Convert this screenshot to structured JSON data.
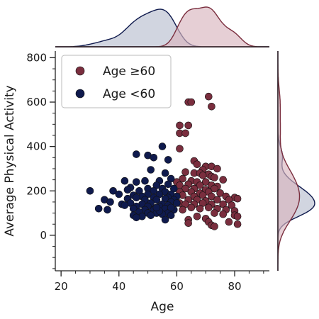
{
  "chart_data": {
    "type": "scatter",
    "title": "",
    "xlabel": "Age",
    "ylabel": "Average Physical Activity",
    "xlim": [
      18,
      92
    ],
    "ylim": [
      -160,
      830
    ],
    "xticks": [
      20,
      40,
      60,
      80
    ],
    "yticks": [
      0,
      200,
      400,
      600,
      800
    ],
    "x_minor_step": 5,
    "y_minor_step": 50,
    "grid": false,
    "legend_position": "top-left",
    "marginals": "kde (x on top, y on right)",
    "series": [
      {
        "name": "Age ≥60",
        "color": "#7a2e3e",
        "marginal_fill": "#d9b5be",
        "points": [
          [
            64,
            600
          ],
          [
            65,
            600
          ],
          [
            71,
            625
          ],
          [
            72,
            580
          ],
          [
            61,
            495
          ],
          [
            64,
            495
          ],
          [
            61,
            460
          ],
          [
            63,
            460
          ],
          [
            61,
            390
          ],
          [
            66,
            335
          ],
          [
            67,
            320
          ],
          [
            70,
            310
          ],
          [
            72,
            310
          ],
          [
            74,
            300
          ],
          [
            69,
            295
          ],
          [
            63,
            285
          ],
          [
            66,
            280
          ],
          [
            68,
            280
          ],
          [
            71,
            275
          ],
          [
            69,
            270
          ],
          [
            72,
            265
          ],
          [
            73,
            260
          ],
          [
            62,
            255
          ],
          [
            60,
            240
          ],
          [
            65,
            245
          ],
          [
            67,
            240
          ],
          [
            70,
            240
          ],
          [
            76,
            250
          ],
          [
            61,
            225
          ],
          [
            64,
            230
          ],
          [
            68,
            225
          ],
          [
            72,
            225
          ],
          [
            74,
            220
          ],
          [
            63,
            210
          ],
          [
            66,
            210
          ],
          [
            70,
            205
          ],
          [
            73,
            210
          ],
          [
            61,
            195
          ],
          [
            65,
            195
          ],
          [
            68,
            190
          ],
          [
            71,
            195
          ],
          [
            75,
            190
          ],
          [
            62,
            180
          ],
          [
            66,
            175
          ],
          [
            69,
            180
          ],
          [
            72,
            175
          ],
          [
            77,
            175
          ],
          [
            80,
            170
          ],
          [
            81,
            165
          ],
          [
            64,
            160
          ],
          [
            67,
            160
          ],
          [
            70,
            155
          ],
          [
            74,
            160
          ],
          [
            78,
            160
          ],
          [
            61,
            145
          ],
          [
            63,
            140
          ],
          [
            66,
            140
          ],
          [
            69,
            145
          ],
          [
            72,
            140
          ],
          [
            76,
            140
          ],
          [
            79,
            135
          ],
          [
            65,
            125
          ],
          [
            68,
            120
          ],
          [
            71,
            125
          ],
          [
            74,
            120
          ],
          [
            77,
            115
          ],
          [
            80,
            110
          ],
          [
            62,
            115
          ],
          [
            73,
            100
          ],
          [
            76,
            95
          ],
          [
            80,
            90
          ],
          [
            67,
            85
          ],
          [
            81,
            85
          ],
          [
            70,
            75
          ],
          [
            64,
            70
          ],
          [
            71,
            60
          ],
          [
            78,
            60
          ],
          [
            64,
            55
          ],
          [
            72,
            45
          ],
          [
            81,
            50
          ],
          [
            73,
            40
          ]
        ]
      },
      {
        "name": "Age <60",
        "color": "#0f1a4d",
        "marginal_fill": "#b8bed0",
        "points": [
          [
            55,
            400
          ],
          [
            46,
            365
          ],
          [
            50,
            360
          ],
          [
            52,
            350
          ],
          [
            57,
            340
          ],
          [
            51,
            295
          ],
          [
            56,
            280
          ],
          [
            42,
            245
          ],
          [
            46,
            240
          ],
          [
            49,
            245
          ],
          [
            54,
            245
          ],
          [
            58,
            255
          ],
          [
            53,
            225
          ],
          [
            57,
            230
          ],
          [
            44,
            215
          ],
          [
            50,
            210
          ],
          [
            55,
            210
          ],
          [
            59,
            210
          ],
          [
            30,
            200
          ],
          [
            38,
            200
          ],
          [
            43,
            205
          ],
          [
            47,
            200
          ],
          [
            52,
            200
          ],
          [
            56,
            195
          ],
          [
            40,
            185
          ],
          [
            45,
            180
          ],
          [
            50,
            185
          ],
          [
            54,
            185
          ],
          [
            58,
            185
          ],
          [
            48,
            175
          ],
          [
            52,
            170
          ],
          [
            57,
            170
          ],
          [
            60,
            175
          ],
          [
            35,
            160
          ],
          [
            43,
            165
          ],
          [
            46,
            170
          ],
          [
            49,
            160
          ],
          [
            53,
            160
          ],
          [
            56,
            165
          ],
          [
            59,
            160
          ],
          [
            37,
            150
          ],
          [
            41,
            140
          ],
          [
            44,
            145
          ],
          [
            48,
            140
          ],
          [
            51,
            145
          ],
          [
            55,
            140
          ],
          [
            58,
            150
          ],
          [
            60,
            145
          ],
          [
            42,
            135
          ],
          [
            46,
            130
          ],
          [
            50,
            130
          ],
          [
            54,
            130
          ],
          [
            57,
            135
          ],
          [
            33,
            120
          ],
          [
            36,
            115
          ],
          [
            45,
            120
          ],
          [
            49,
            115
          ],
          [
            52,
            115
          ],
          [
            56,
            120
          ],
          [
            59,
            115
          ],
          [
            47,
            105
          ],
          [
            50,
            100
          ],
          [
            53,
            100
          ],
          [
            57,
            100
          ],
          [
            45,
            90
          ],
          [
            48,
            85
          ],
          [
            51,
            90
          ],
          [
            55,
            95
          ],
          [
            58,
            90
          ],
          [
            46,
            80
          ],
          [
            56,
            70
          ],
          [
            54,
            110
          ],
          [
            53,
            125
          ],
          [
            58,
            125
          ]
        ]
      }
    ]
  }
}
